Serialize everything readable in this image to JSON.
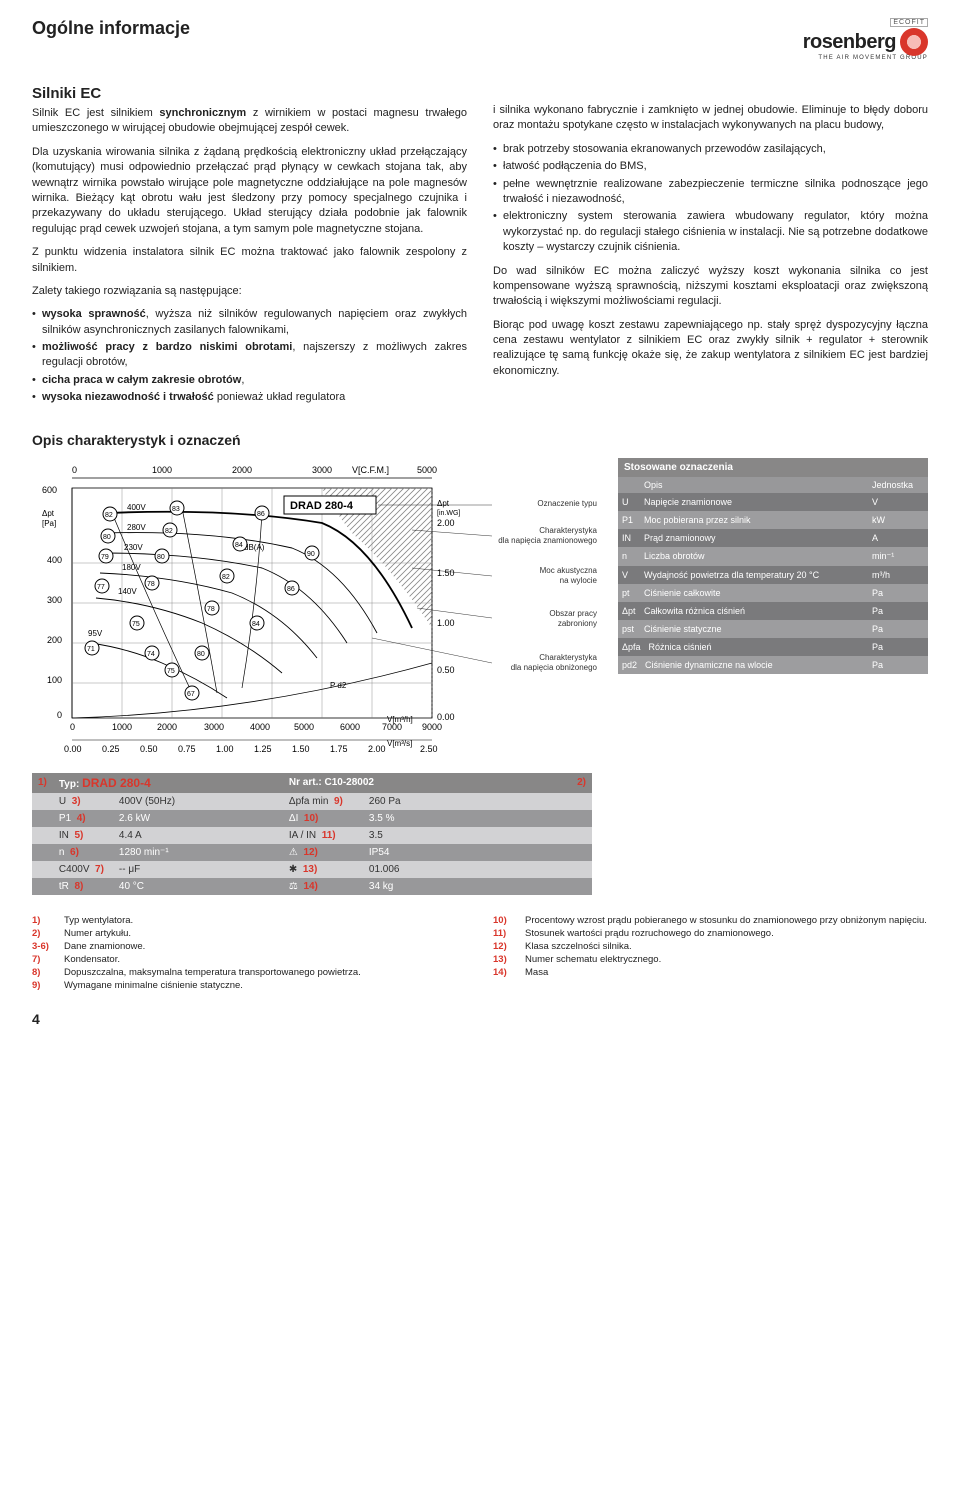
{
  "header": {
    "title": "Ogólne informacje",
    "brand": "rosenberg",
    "tagline": "THE AIR MOVEMENT GROUP",
    "ecofit": "ECOFIT"
  },
  "left": {
    "section_title": "Silniki EC",
    "p1a": "Silnik EC jest silnikiem ",
    "p1b": "synchronicznym",
    "p1c": " z wirnikiem w postaci magnesu trwałego umieszczonego w wirującej obudowie obejmującej zespół cewek.",
    "p2": "Dla uzyskania wirowania silnika z żądaną prędkością elektroniczny układ przełączający (komutujący) musi odpowiednio przełączać prąd płynący w cewkach stojana tak, aby wewnątrz wirnika powstało wirujące pole magnetyczne oddziałujące na pole magnesów wirnika. Bieżący kąt obrotu wału jest śledzony przy pomocy specjalnego czujnika i przekazywany do układu sterującego. Układ sterujący działa podobnie jak falownik regulując prąd cewek uzwojeń stojana, a tym samym pole magnetyczne stojana.",
    "p3": "Z punktu widzenia instalatora silnik EC można traktować jako falownik zespolony z silnikiem.",
    "p4": "Zalety takiego rozwiązania są następujące:",
    "bullets": [
      {
        "b": "wysoka sprawność",
        "r": ", wyższa niż silników regulowanych napięciem oraz zwykłych silników asynchronicznych zasilanych falownikami,"
      },
      {
        "b": "możliwość pracy z bardzo niskimi obrotami",
        "r": ", najszerszy z możliwych zakres regulacji obrotów,"
      },
      {
        "b": "cicha praca w całym zakresie obrotów",
        "r": ","
      },
      {
        "b": "wysoka niezawodność i trwałość",
        "r": " ponieważ układ regulatora"
      }
    ]
  },
  "right": {
    "lead": "i silnika wykonano fabrycznie i zamknięto w jednej obudowie. Eliminuje to błędy doboru oraz montażu spotykane często w instalacjach wykonywanych na placu budowy,",
    "bullets": [
      "brak potrzeby stosowania ekranowanych przewodów zasilających,",
      "łatwość podłączenia do BMS,",
      "pełne wewnętrznie realizowane zabezpieczenie termiczne silnika podnoszące jego trwałość i niezawodność,",
      "elektroniczny system sterowania zawiera wbudowany regulator, który można wykorzystać np. do regulacji stałego ciśnienia w instalacji. Nie są potrzebne dodatkowe koszty – wystarczy czujnik ciśnienia."
    ],
    "p2": "Do wad silników EC można zaliczyć wyższy koszt wykonania silnika co jest kompensowane wyższą sprawnością, niższymi kosztami eksploatacji oraz zwiększoną trwałością i większymi możliwościami regulacji.",
    "p3": "Biorąc pod uwagę koszt zestawu zapewniającego np. stały spręż dyspozycyjny łączna cena zestawu wentylator z silnikiem EC oraz zwykły silnik + regulator + sterownik realizujące tę samą funkcję okaże się, że zakup wentylatora z silnikiem EC jest bardziej ekonomiczny."
  },
  "chart_title": "Opis charakterystyk i oznaczeń",
  "chart": {
    "model": "DRAD 280-4",
    "db_label": "dB(A)",
    "pd2": "P d2",
    "y_left_label": "Δpt [Pa]",
    "y_right_unit": "Δpt [in.WG]",
    "y_ticks_left": [
      0,
      100,
      200,
      300,
      400,
      600
    ],
    "y_ticks_right": [
      "0.00",
      "0.50",
      "1.00",
      "1.50",
      "2.00"
    ],
    "x_bottom_ticks": [
      0,
      1000,
      2000,
      3000,
      4000,
      5000,
      6000,
      7000
    ],
    "x_bottom_unit": "V[m³/h]",
    "x_bottom_last": "9000",
    "x_top_ticks": [
      0,
      1000,
      2000,
      3000
    ],
    "x_top_unit": "V[C.F.M.]",
    "x_top_last": "5000",
    "x_bottom2_ticks": [
      "0.00",
      "0.25",
      "0.50",
      "0.75",
      "1.00",
      "1.25",
      "1.50",
      "1.75",
      "2.00"
    ],
    "x_bottom2_unit": "V[m³/s]",
    "x_bottom2_last": "2.50",
    "volt_labels": [
      "400V",
      "280V",
      "230V",
      "180V",
      "140V",
      "95V"
    ],
    "circle_vals": [
      "82",
      "80",
      "79",
      "77",
      "71",
      "83",
      "82",
      "80",
      "78",
      "75",
      "74",
      "75",
      "67",
      "86",
      "84",
      "82",
      "78",
      "80",
      "90",
      "86",
      "84"
    ],
    "annotations": [
      "Oznaczenie typu",
      "Charakterystyka dla napięcia znamionowego",
      "Moc akustyczna na wylocie",
      "Obszar pracy zabroniony",
      "Charakterystyka dla napięcia obniżonego"
    ]
  },
  "notation": {
    "header": "Stosowane oznaczenia",
    "col_sym": "",
    "col_desc": "Opis",
    "col_unit": "Jednostka",
    "rows": [
      {
        "s": "U",
        "d": "Napięcie znamionowe",
        "u": "V"
      },
      {
        "s": "P1",
        "d": "Moc pobierana przez silnik",
        "u": "kW"
      },
      {
        "s": "IN",
        "d": "Prąd znamionowy",
        "u": "A"
      },
      {
        "s": "n",
        "d": "Liczba obrotów",
        "u": "min⁻¹"
      },
      {
        "s": "V",
        "d": "Wydajność powietrza dla temperatury 20 °C",
        "u": "m³/h"
      },
      {
        "s": "pt",
        "d": "Ciśnienie całkowite",
        "u": "Pa"
      },
      {
        "s": "Δpt",
        "d": "Całkowita różnica ciśnień",
        "u": "Pa"
      },
      {
        "s": "pst",
        "d": "Ciśnienie statyczne",
        "u": "Pa"
      },
      {
        "s": "Δpfa",
        "d": "Różnica ciśnień",
        "u": "Pa"
      },
      {
        "s": "pd2",
        "d": "Ciśnienie dynamiczne na wlocie",
        "u": "Pa"
      }
    ]
  },
  "spec": {
    "typ_label": "Typ:",
    "model": "DRAD 280-4",
    "art_label": "Nr art.:",
    "art": "C10-28002",
    "ref1": "1)",
    "ref2": "2)",
    "rows": [
      {
        "l": "U",
        "ln": "3)",
        "lv": "400V (50Hz)",
        "r": "Δpfa min",
        "rn": "9)",
        "rv": "260 Pa"
      },
      {
        "l": "P1",
        "ln": "4)",
        "lv": "2.6 kW",
        "r": "ΔI",
        "rn": "10)",
        "rv": "3.5 %"
      },
      {
        "l": "IN",
        "ln": "5)",
        "lv": "4.4 A",
        "r": "IA / IN",
        "rn": "11)",
        "rv": "3.5"
      },
      {
        "l": "n",
        "ln": "6)",
        "lv": "1280 min⁻¹",
        "r": "⚠",
        "rn": "12)",
        "rv": "IP54"
      },
      {
        "l": "C400V",
        "ln": "7)",
        "lv": "-- μF",
        "r": "✱",
        "rn": "13)",
        "rv": "01.006"
      },
      {
        "l": "tR",
        "ln": "8)",
        "lv": "40 °C",
        "r": "⚖",
        "rn": "14)",
        "rv": "34 kg"
      }
    ]
  },
  "footnotes_left": [
    {
      "n": "1)",
      "t": "Typ wentylatora."
    },
    {
      "n": "2)",
      "t": "Numer artykułu."
    },
    {
      "n": "3-6)",
      "t": "Dane znamionowe."
    },
    {
      "n": "7)",
      "t": "Kondensator."
    },
    {
      "n": "8)",
      "t": "Dopuszczalna, maksymalna temperatura transportowanego powietrza."
    },
    {
      "n": "9)",
      "t": "Wymagane minimalne ciśnienie statyczne."
    }
  ],
  "footnotes_right": [
    {
      "n": "10)",
      "t": "Procentowy wzrost prądu pobieranego w stosunku do znamionowego przy obniżonym napięciu."
    },
    {
      "n": "11)",
      "t": "Stosunek wartości prądu rozruchowego do znamionowego."
    },
    {
      "n": "12)",
      "t": "Klasa szczelności silnika."
    },
    {
      "n": "13)",
      "t": "Numer schematu elektrycznego."
    },
    {
      "n": "14)",
      "t": "Masa"
    }
  ],
  "page": "4"
}
